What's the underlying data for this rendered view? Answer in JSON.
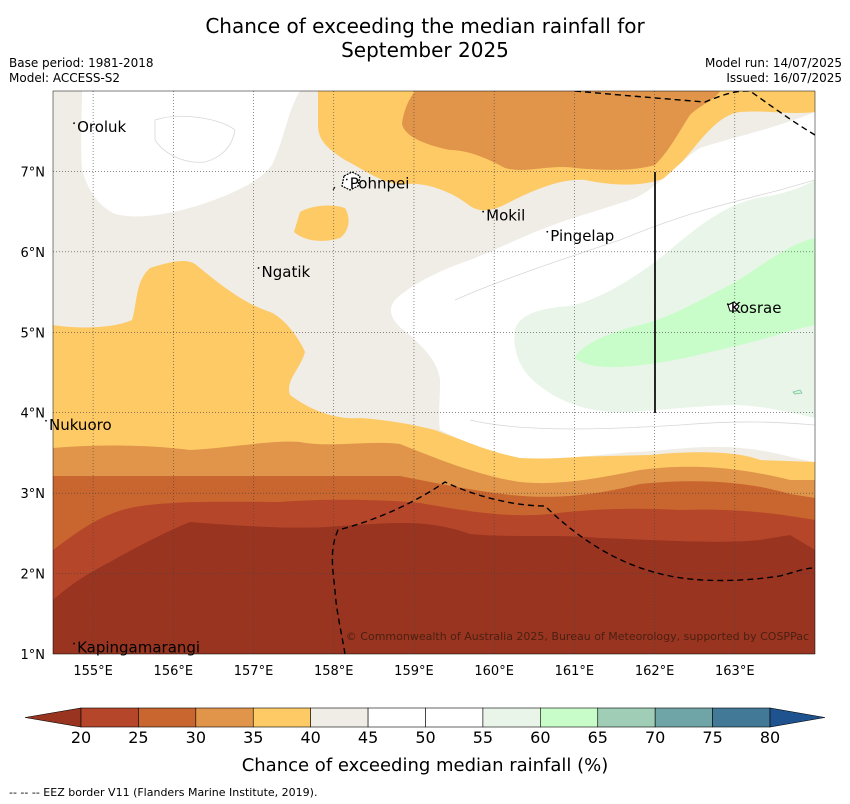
{
  "title_line1": "Chance of exceeding the median rainfall for",
  "title_line2": "September 2025",
  "info": {
    "base_period": "Base period: 1981-2018",
    "model": "Model: ACCESS-S2",
    "model_run": "Model run: 14/07/2025",
    "issued": "Issued: 16/07/2025"
  },
  "places": [
    {
      "name": "Oroluk",
      "lon": 154.8,
      "lat": 7.55
    },
    {
      "name": "Pohnpei",
      "lon": 158.2,
      "lat": 6.85
    },
    {
      "name": "Mokil",
      "lon": 159.9,
      "lat": 6.45
    },
    {
      "name": "Pingelap",
      "lon": 160.7,
      "lat": 6.2
    },
    {
      "name": "Ngatik",
      "lon": 157.1,
      "lat": 5.75
    },
    {
      "name": "Kosrae",
      "lon": 162.95,
      "lat": 5.3
    },
    {
      "name": "Nukuoro",
      "lon": 154.45,
      "lat": 3.85
    },
    {
      "name": "Kapingamarangi",
      "lon": 154.8,
      "lat": 1.08
    }
  ],
  "lat_ticks": [
    "1°N",
    "2°N",
    "3°N",
    "4°N",
    "5°N",
    "6°N",
    "7°N"
  ],
  "lon_ticks": [
    "155°E",
    "156°E",
    "157°E",
    "158°E",
    "159°E",
    "160°E",
    "161°E",
    "162°E",
    "163°E"
  ],
  "extent": {
    "lon_min": 154.5,
    "lon_max": 164.0,
    "lat_min": 1.0,
    "lat_max": 8.0
  },
  "copyright": "© Commonwealth of Australia 2025, Bureau of Meteorology, supported by COSPPac",
  "colorbar": {
    "title": "Chance of exceeding median rainfall (%)",
    "labels": [
      "20",
      "25",
      "30",
      "35",
      "40",
      "45",
      "50",
      "55",
      "60",
      "65",
      "70",
      "75",
      "80"
    ],
    "colors": [
      "#b5462a",
      "#c9652e",
      "#e0954a",
      "#fdca65",
      "#f0ece6",
      "#ffffff",
      "#ffffff",
      "#e8f5e8",
      "#c8fdc9",
      "#9fcdb5",
      "#6fa5a6",
      "#427997"
    ],
    "under_color": "#993421",
    "over_color": "#1e538f"
  },
  "footnote": "-- -- -- EEZ border V11 (Flanders Marine Institute, 2019)."
}
